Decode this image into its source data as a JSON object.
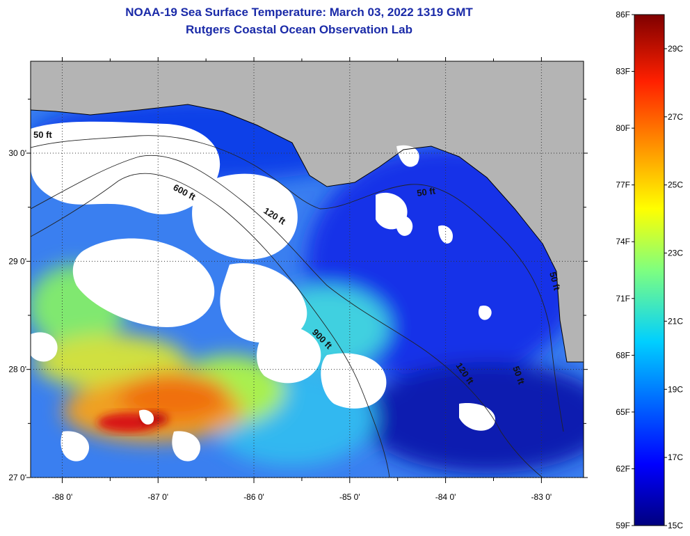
{
  "header": {
    "title": "NOAA-19 Sea Surface Temperature:  March 03, 2022 1319 GMT",
    "subtitle": "Rutgers Coastal Ocean Observation Lab"
  },
  "map": {
    "lat_range": [
      27.0,
      30.85
    ],
    "lon_range": [
      -88.33,
      -82.56
    ],
    "lat_labels": [
      "30 0'",
      "29 0'",
      "28 0'",
      "27 0'"
    ],
    "lat_values": [
      30,
      29,
      28,
      27
    ],
    "lon_labels": [
      "-88 0'",
      "-87 0'",
      "-86 0'",
      "-85 0'",
      "-84 0'",
      "-83 0'"
    ],
    "lon_values": [
      -88,
      -87,
      -86,
      -85,
      -84,
      -83
    ],
    "contour_labels": [
      "50 ft",
      "600 ft",
      "120 ft",
      "900 ft",
      "50 ft",
      "120 ft",
      "50 ft",
      "50 ft"
    ],
    "colors": {
      "land": "#b4b4b4",
      "cloud": "#ffffff",
      "coast": "#000000"
    }
  },
  "colorbar": {
    "f_labels": [
      "86F",
      "83F",
      "80F",
      "77F",
      "74F",
      "71F",
      "68F",
      "65F",
      "62F",
      "59F"
    ],
    "c_labels": [
      "29C",
      "27C",
      "25C",
      "23C",
      "21C",
      "19C",
      "17C",
      "15C"
    ],
    "range_f": [
      59,
      86
    ],
    "range_c": [
      15,
      30
    ]
  }
}
